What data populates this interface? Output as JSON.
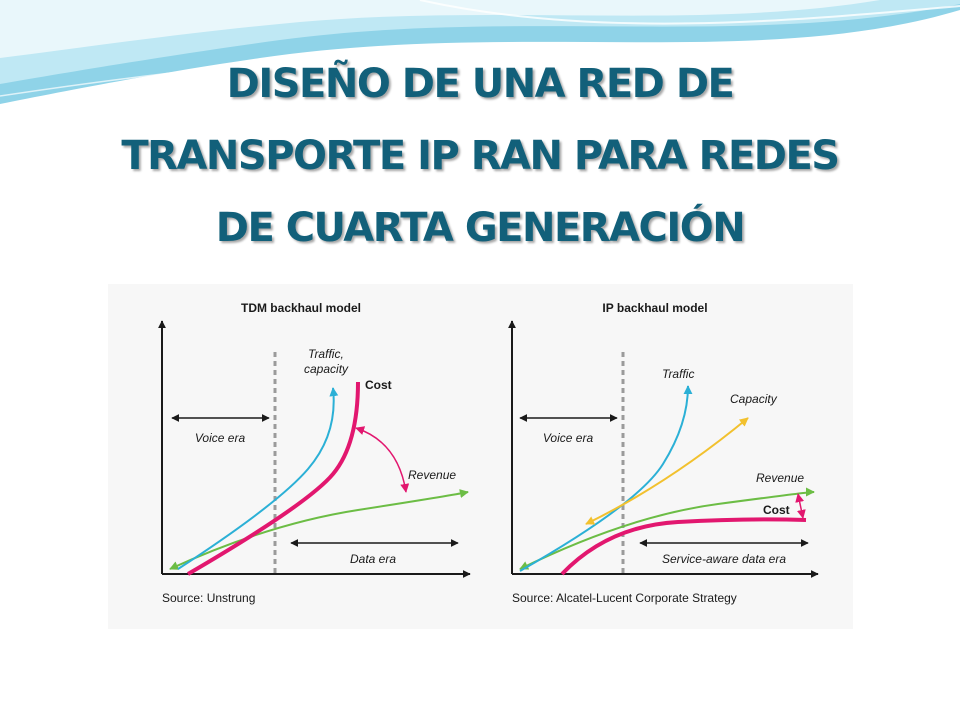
{
  "slide": {
    "title_lines": [
      "DISEÑO DE UNA RED DE",
      "TRANSPORTE IP RAN PARA REDES",
      "DE CUARTA GENERACIÓN"
    ],
    "title_color": "#12607a",
    "header_colors": [
      "#8fd3e8",
      "#c7ecf6",
      "#e9f7fb"
    ]
  },
  "figure": {
    "colors": {
      "traffic": "#2bb0d6",
      "cost": "#e2176f",
      "revenue": "#6cbd45",
      "capacity": "#f2c12e",
      "axis": "#1a1a1a",
      "divider": "#9b9b9b"
    },
    "left_panel": {
      "title": "TDM backhaul model",
      "voice_era": "Voice era",
      "data_era": "Data era",
      "traffic_label": [
        "Traffic,",
        "capacity"
      ],
      "cost_label": "Cost",
      "revenue_label": "Revenue",
      "source": "Source: Unstrung"
    },
    "right_panel": {
      "title": "IP backhaul model",
      "voice_era": "Voice era",
      "data_era": "Service-aware data era",
      "traffic_label": "Traffic",
      "capacity_label": "Capacity",
      "revenue_label": "Revenue",
      "cost_label": "Cost",
      "source": "Source: Alcatel-Lucent Corporate Strategy"
    }
  }
}
